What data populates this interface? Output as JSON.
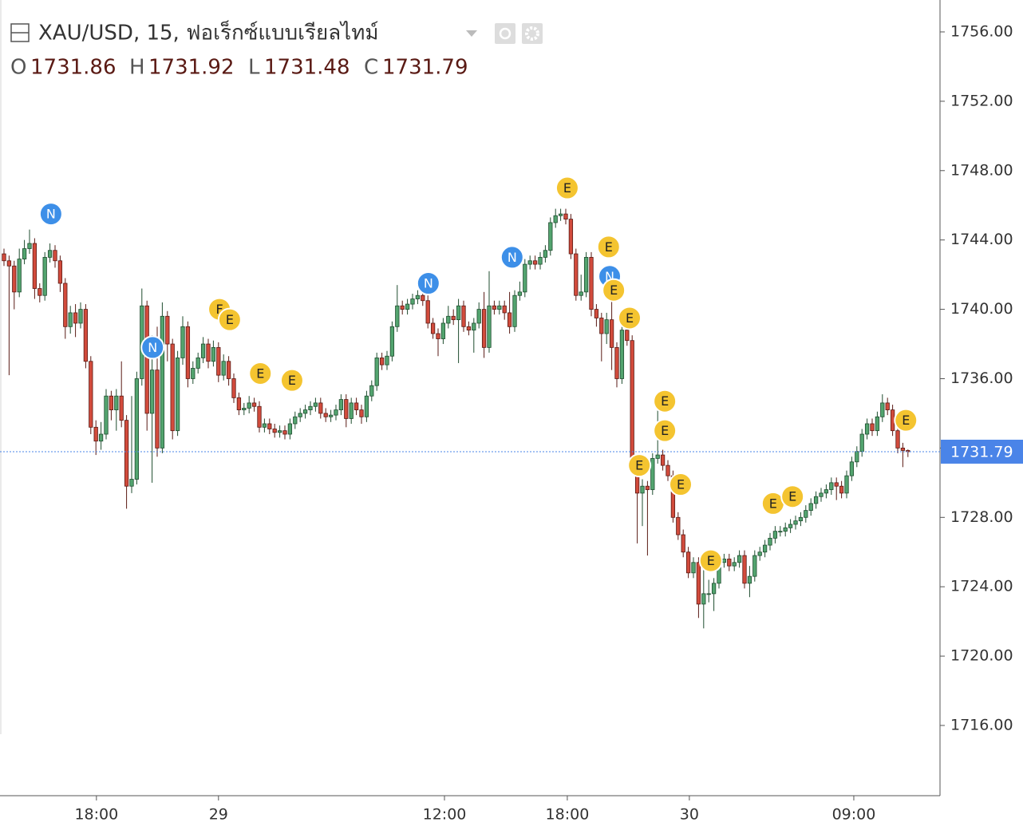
{
  "chart_data": {
    "type": "candlestick",
    "title": "XAU/USD, 15, ฟอเร็กซ์แบบเรียลไทม์",
    "ohlc_labels": [
      "O",
      "H",
      "L",
      "C"
    ],
    "up_color": "#53a46f",
    "up_border": "#1f4d2f",
    "down_color": "#d24b3c",
    "down_border": "#5a1a14",
    "price_line_color": "#4a84e8",
    "xlim": [
      -0.78,
      183.28
    ],
    "ylim": [
      1711.95,
      1757.84
    ],
    "yticks": [
      {
        "value": 1716,
        "label": "1716.00"
      },
      {
        "value": 1720,
        "label": "1720.00"
      },
      {
        "value": 1724,
        "label": "1724.00"
      },
      {
        "value": 1728,
        "label": "1728.00"
      },
      {
        "value": 1732,
        "label": "1732.00"
      },
      {
        "value": 1736,
        "label": "1736.00"
      },
      {
        "value": 1740,
        "label": "1740.00"
      },
      {
        "value": 1744,
        "label": "1744.00"
      },
      {
        "value": 1748,
        "label": "1748.00"
      },
      {
        "value": 1752,
        "label": "1752.00"
      },
      {
        "value": 1756,
        "label": "1756.00"
      }
    ],
    "xticks": [
      {
        "value": 18.1,
        "label": "18:00"
      },
      {
        "value": 42.0,
        "label": "29"
      },
      {
        "value": 86.25,
        "label": "12:00"
      },
      {
        "value": 110.3,
        "label": "18:00"
      },
      {
        "value": 134.2,
        "label": "30"
      },
      {
        "value": 166.4,
        "label": "09:00"
      }
    ],
    "open": [
      1743.2,
      1742.8,
      1742.5,
      1741.0,
      1742.9,
      1743.5,
      1743.8,
      1741.2,
      1740.8,
      1743.0,
      1743.4,
      1742.8,
      1741.5,
      1739.0,
      1739.8,
      1739.2,
      1740.0,
      1737.0,
      1733.2,
      1732.4,
      1732.8,
      1735.0,
      1734.2,
      1735.0,
      1733.6,
      1729.8,
      1730.2,
      1736.0,
      1740.2,
      1734.0,
      1736.5,
      1732.0,
      1739.6,
      1738.0,
      1733.0,
      1737.2,
      1739.0,
      1736.0,
      1736.6,
      1737.2,
      1738.0,
      1737.0,
      1737.8,
      1736.2,
      1737.0,
      1736.0,
      1734.9,
      1734.2,
      1734.3,
      1734.6,
      1734.4,
      1733.2,
      1733.4,
      1733.1,
      1732.9,
      1733.0,
      1732.8,
      1733.4,
      1733.8,
      1734.0,
      1734.2,
      1734.4,
      1734.6,
      1734.0,
      1733.8,
      1733.9,
      1734.2,
      1734.8,
      1733.7,
      1734.6,
      1734.2,
      1733.8,
      1735.0,
      1735.6,
      1737.2,
      1736.8,
      1737.3,
      1739.0,
      1740.2,
      1740.0,
      1740.3,
      1740.6,
      1740.8,
      1740.5,
      1739.2,
      1738.6,
      1738.3,
      1739.2,
      1739.6,
      1739.4,
      1740.2,
      1739.0,
      1738.8,
      1739.2,
      1740.0,
      1737.8,
      1740.2,
      1740.0,
      1740.2,
      1739.8,
      1739.0,
      1740.8,
      1741.0,
      1742.6,
      1742.8,
      1742.6,
      1743.0,
      1743.4,
      1745.0,
      1745.4,
      1745.5,
      1745.2,
      1743.2,
      1740.8,
      1741.0,
      1743.0,
      1740.0,
      1739.5,
      1738.6,
      1739.4,
      1737.8,
      1736.0,
      1738.8,
      1738.2,
      1731.0,
      1729.4,
      1729.8,
      1729.6,
      1731.4,
      1731.6,
      1731.0,
      1730.4,
      1728.0,
      1727.0,
      1726.0,
      1724.8,
      1725.4,
      1723.0,
      1723.6,
      1723.6,
      1724.2,
      1725.4,
      1725.6,
      1725.2,
      1725.4,
      1725.8,
      1724.2,
      1724.6,
      1725.8,
      1726.0,
      1726.4,
      1726.8,
      1727.2,
      1727.2,
      1727.4,
      1727.6,
      1727.8,
      1728.0,
      1728.4,
      1728.8,
      1729.2,
      1729.4,
      1729.6,
      1730.0,
      1729.8,
      1729.4,
      1730.4,
      1731.2,
      1731.8,
      1732.8,
      1733.4,
      1733.0,
      1733.8,
      1734.6,
      1734.2,
      1733.0,
      1732.0,
      1731.86
    ],
    "high": [
      1743.5,
      1743.1,
      1742.8,
      1743.5,
      1744.0,
      1744.6,
      1744.1,
      1741.5,
      1743.3,
      1743.8,
      1743.7,
      1743.1,
      1741.8,
      1740.2,
      1740.3,
      1740.4,
      1740.3,
      1737.3,
      1733.6,
      1733.5,
      1735.4,
      1735.3,
      1735.4,
      1737.0,
      1733.9,
      1735.0,
      1736.4,
      1741.2,
      1740.5,
      1738.5,
      1739.0,
      1740.4,
      1739.9,
      1738.3,
      1737.6,
      1739.6,
      1739.3,
      1737.0,
      1737.5,
      1738.4,
      1738.3,
      1738.2,
      1738.1,
      1737.4,
      1737.3,
      1736.3,
      1735.2,
      1734.6,
      1735.0,
      1734.9,
      1734.7,
      1733.7,
      1733.7,
      1733.4,
      1733.3,
      1733.3,
      1733.7,
      1734.1,
      1734.3,
      1734.5,
      1734.7,
      1734.9,
      1734.9,
      1734.3,
      1734.2,
      1734.5,
      1735.1,
      1735.1,
      1734.9,
      1734.9,
      1734.5,
      1735.3,
      1735.9,
      1737.5,
      1737.5,
      1737.6,
      1739.3,
      1741.4,
      1740.5,
      1740.6,
      1740.9,
      1741.1,
      1741.1,
      1740.8,
      1739.5,
      1738.9,
      1739.5,
      1740.2,
      1740.0,
      1740.6,
      1740.5,
      1739.3,
      1739.5,
      1740.4,
      1741.0,
      1742.2,
      1740.5,
      1740.5,
      1740.5,
      1741.0,
      1741.1,
      1741.6,
      1742.9,
      1743.1,
      1743.1,
      1743.3,
      1743.7,
      1745.3,
      1745.8,
      1745.8,
      1745.8,
      1745.5,
      1743.5,
      1742.0,
      1743.3,
      1743.3,
      1740.3,
      1739.8,
      1739.8,
      1741.0,
      1738.1,
      1739.1,
      1739.1,
      1738.5,
      1731.3,
      1730.2,
      1730.1,
      1731.7,
      1734.5,
      1731.9,
      1731.3,
      1730.7,
      1728.3,
      1727.3,
      1726.3,
      1725.7,
      1725.7,
      1725.4,
      1724.4,
      1724.5,
      1725.7,
      1725.9,
      1725.9,
      1725.7,
      1726.1,
      1726.1,
      1725.2,
      1726.1,
      1726.3,
      1726.7,
      1727.1,
      1727.5,
      1727.5,
      1727.7,
      1727.9,
      1728.1,
      1728.3,
      1728.7,
      1729.1,
      1729.5,
      1729.7,
      1729.9,
      1730.3,
      1730.3,
      1730.1,
      1730.7,
      1731.5,
      1732.1,
      1733.1,
      1733.7,
      1733.7,
      1734.1,
      1735.1,
      1734.9,
      1734.5,
      1733.3,
      1732.3,
      1731.92
    ],
    "low": [
      1742.5,
      1736.2,
      1740.0,
      1740.7,
      1742.6,
      1743.2,
      1740.6,
      1740.4,
      1740.5,
      1742.7,
      1742.4,
      1741.0,
      1738.3,
      1738.6,
      1738.4,
      1738.9,
      1736.6,
      1732.8,
      1731.6,
      1731.9,
      1732.5,
      1733.6,
      1733.0,
      1733.2,
      1728.5,
      1729.4,
      1729.9,
      1735.6,
      1733.0,
      1730.0,
      1731.5,
      1731.7,
      1737.0,
      1732.5,
      1732.7,
      1736.8,
      1735.5,
      1735.7,
      1736.3,
      1736.9,
      1736.6,
      1736.7,
      1735.8,
      1735.9,
      1735.6,
      1734.6,
      1733.9,
      1733.9,
      1734.0,
      1734.1,
      1732.9,
      1732.9,
      1732.8,
      1732.6,
      1732.6,
      1732.5,
      1732.5,
      1733.1,
      1733.5,
      1733.7,
      1733.9,
      1734.1,
      1733.7,
      1733.5,
      1733.5,
      1733.6,
      1733.9,
      1733.2,
      1733.4,
      1733.9,
      1733.4,
      1733.5,
      1734.7,
      1735.3,
      1736.5,
      1736.5,
      1737.0,
      1738.7,
      1739.7,
      1739.7,
      1740.0,
      1740.3,
      1740.2,
      1738.9,
      1738.3,
      1737.3,
      1738.0,
      1738.9,
      1739.1,
      1736.9,
      1738.7,
      1738.5,
      1737.5,
      1738.9,
      1737.2,
      1737.5,
      1739.7,
      1739.7,
      1739.4,
      1738.6,
      1738.7,
      1740.5,
      1740.7,
      1742.3,
      1742.3,
      1742.3,
      1742.7,
      1743.1,
      1744.7,
      1745.1,
      1744.9,
      1742.9,
      1740.5,
      1740.5,
      1740.7,
      1739.6,
      1739.0,
      1737.0,
      1738.0,
      1736.5,
      1735.5,
      1735.7,
      1737.9,
      1730.6,
      1726.5,
      1727.5,
      1725.8,
      1729.3,
      1731.1,
      1730.7,
      1730.1,
      1727.7,
      1726.7,
      1725.7,
      1724.5,
      1724.5,
      1722.2,
      1721.6,
      1723.1,
      1722.6,
      1723.9,
      1725.1,
      1724.9,
      1724.9,
      1725.1,
      1723.9,
      1723.4,
      1724.3,
      1725.5,
      1725.7,
      1726.1,
      1726.5,
      1726.9,
      1726.9,
      1727.1,
      1727.3,
      1727.5,
      1727.7,
      1728.1,
      1728.5,
      1728.9,
      1729.1,
      1729.3,
      1729.0,
      1729.1,
      1729.1,
      1730.1,
      1730.9,
      1731.5,
      1732.5,
      1732.7,
      1732.7,
      1733.5,
      1733.9,
      1732.7,
      1731.7,
      1730.9,
      1731.48
    ],
    "close": [
      1742.8,
      1742.5,
      1741.0,
      1742.9,
      1743.5,
      1743.8,
      1741.2,
      1740.8,
      1743.0,
      1743.4,
      1742.8,
      1741.5,
      1739.0,
      1739.8,
      1739.2,
      1740.0,
      1737.0,
      1733.2,
      1732.4,
      1732.8,
      1735.0,
      1734.2,
      1735.0,
      1733.6,
      1729.8,
      1730.2,
      1736.0,
      1740.2,
      1734.0,
      1736.5,
      1732.0,
      1739.6,
      1738.0,
      1733.0,
      1737.2,
      1739.0,
      1736.0,
      1736.6,
      1737.2,
      1738.0,
      1737.0,
      1737.8,
      1736.2,
      1737.0,
      1736.0,
      1734.9,
      1734.2,
      1734.3,
      1734.6,
      1734.4,
      1733.2,
      1733.4,
      1733.1,
      1732.9,
      1733.0,
      1732.8,
      1733.4,
      1733.8,
      1734.0,
      1734.2,
      1734.4,
      1734.6,
      1734.0,
      1733.8,
      1733.9,
      1734.2,
      1734.8,
      1733.7,
      1734.6,
      1734.2,
      1733.8,
      1735.0,
      1735.6,
      1737.2,
      1736.8,
      1737.3,
      1739.0,
      1740.2,
      1740.0,
      1740.3,
      1740.6,
      1740.8,
      1740.5,
      1739.2,
      1738.6,
      1738.3,
      1739.2,
      1739.6,
      1739.4,
      1740.2,
      1739.0,
      1738.8,
      1739.2,
      1740.0,
      1737.8,
      1740.2,
      1740.0,
      1740.2,
      1739.8,
      1739.0,
      1740.8,
      1741.0,
      1742.6,
      1742.8,
      1742.6,
      1743.0,
      1743.4,
      1745.0,
      1745.4,
      1745.5,
      1745.2,
      1743.2,
      1740.8,
      1741.0,
      1743.0,
      1740.0,
      1739.5,
      1738.6,
      1739.4,
      1737.8,
      1736.0,
      1738.8,
      1738.2,
      1731.0,
      1729.4,
      1729.8,
      1729.6,
      1731.4,
      1731.6,
      1731.0,
      1730.4,
      1728.0,
      1727.0,
      1726.0,
      1724.8,
      1725.4,
      1723.0,
      1723.6,
      1723.6,
      1724.2,
      1725.4,
      1725.6,
      1725.2,
      1725.4,
      1725.8,
      1724.2,
      1724.6,
      1725.8,
      1726.0,
      1726.4,
      1726.8,
      1727.2,
      1727.2,
      1727.4,
      1727.6,
      1727.8,
      1728.0,
      1728.4,
      1728.8,
      1729.2,
      1729.4,
      1729.6,
      1730.0,
      1729.8,
      1729.4,
      1730.4,
      1731.2,
      1731.8,
      1732.8,
      1733.4,
      1733.0,
      1733.8,
      1734.6,
      1734.2,
      1733.0,
      1732.0,
      1731.86,
      1731.79
    ],
    "events": [
      {
        "label": "N",
        "x": 9.2,
        "y": 1745.5,
        "color": "#3d8fe8"
      },
      {
        "label": "N",
        "x": 29.1,
        "y": 1737.8,
        "color": "#3d8fe8"
      },
      {
        "label": "F",
        "x": 42.2,
        "y": 1740.0,
        "color": "#f4c430"
      },
      {
        "label": "E",
        "x": 44.2,
        "y": 1739.4,
        "color": "#f4c430"
      },
      {
        "label": "E",
        "x": 50.2,
        "y": 1736.3,
        "color": "#f4c430"
      },
      {
        "label": "E",
        "x": 56.4,
        "y": 1735.9,
        "color": "#f4c430"
      },
      {
        "label": "N",
        "x": 83.1,
        "y": 1741.5,
        "color": "#3d8fe8"
      },
      {
        "label": "N",
        "x": 99.5,
        "y": 1743.0,
        "color": "#3d8fe8"
      },
      {
        "label": "E",
        "x": 110.3,
        "y": 1747.0,
        "color": "#f4c430"
      },
      {
        "label": "E",
        "x": 118.4,
        "y": 1743.6,
        "color": "#f4c430"
      },
      {
        "label": "N",
        "x": 118.6,
        "y": 1741.9,
        "color": "#3d8fe8"
      },
      {
        "label": "E",
        "x": 119.4,
        "y": 1741.1,
        "color": "#f4c430"
      },
      {
        "label": "E",
        "x": 122.5,
        "y": 1739.5,
        "color": "#f4c430"
      },
      {
        "label": "E",
        "x": 129.4,
        "y": 1734.7,
        "color": "#f4c430"
      },
      {
        "label": "E",
        "x": 129.4,
        "y": 1733.0,
        "color": "#f4c430"
      },
      {
        "label": "E",
        "x": 124.4,
        "y": 1731.0,
        "color": "#f4c430"
      },
      {
        "label": "E",
        "x": 132.5,
        "y": 1729.9,
        "color": "#f4c430"
      },
      {
        "label": "E",
        "x": 138.4,
        "y": 1725.5,
        "color": "#f4c430"
      },
      {
        "label": "E",
        "x": 150.6,
        "y": 1728.8,
        "color": "#f4c430"
      },
      {
        "label": "E",
        "x": 154.4,
        "y": 1729.2,
        "color": "#f4c430"
      },
      {
        "label": "E",
        "x": 176.6,
        "y": 1733.6,
        "color": "#f4c430"
      }
    ]
  }
}
